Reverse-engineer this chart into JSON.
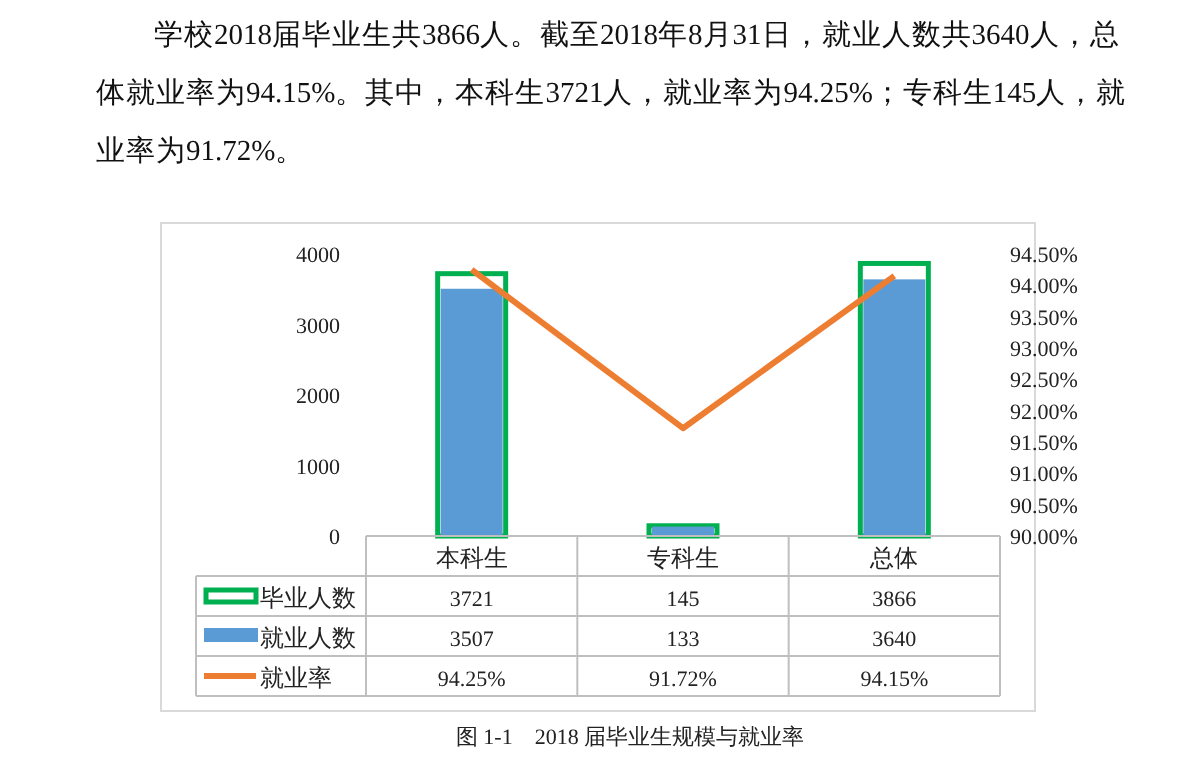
{
  "chart_data": {
    "type": "bar",
    "categories": [
      "本科生",
      "专科生",
      "总体"
    ],
    "series": [
      {
        "name": "毕业人数",
        "color": "#00b050",
        "values": [
          3721,
          145,
          3866
        ]
      },
      {
        "name": "就业人数",
        "color": "#5b9bd5",
        "values": [
          3507,
          133,
          3640
        ]
      },
      {
        "name": "就业率",
        "type": "line",
        "axis": "y2",
        "color": "#ed7d31",
        "values": [
          94.25,
          91.72,
          94.15
        ],
        "value_labels": [
          "94.25%",
          "91.72%",
          "94.15%"
        ]
      }
    ],
    "ylim": [
      0,
      4000
    ],
    "yticks": [
      0,
      1000,
      2000,
      3000,
      4000
    ],
    "y2lim": [
      90,
      94.5
    ],
    "y2ticks": [
      {
        "value": 90,
        "label": "90.00%"
      },
      {
        "value": 90.5,
        "label": "90.50%"
      },
      {
        "value": 91,
        "label": "91.00%"
      },
      {
        "value": 91.5,
        "label": "91.50%"
      },
      {
        "value": 92,
        "label": "92.00%"
      },
      {
        "value": 92.5,
        "label": "92.50%"
      },
      {
        "value": 93,
        "label": "93.00%"
      },
      {
        "value": 93.5,
        "label": "93.50%"
      },
      {
        "value": 94,
        "label": "94.00%"
      },
      {
        "value": 94.5,
        "label": "94.50%"
      }
    ],
    "data_labels": true,
    "legend": "bottom",
    "annotations": [
      "学校2018届毕业生共3866人。截至2018年8月31日，就业人数共3640人，总体就业率为94.15%。其中，本科生3721人，就业率为94.25%；专科生145人，就业率为91.72%。",
      "图 1-1　2018 届毕业生规模与就业率"
    ]
  }
}
